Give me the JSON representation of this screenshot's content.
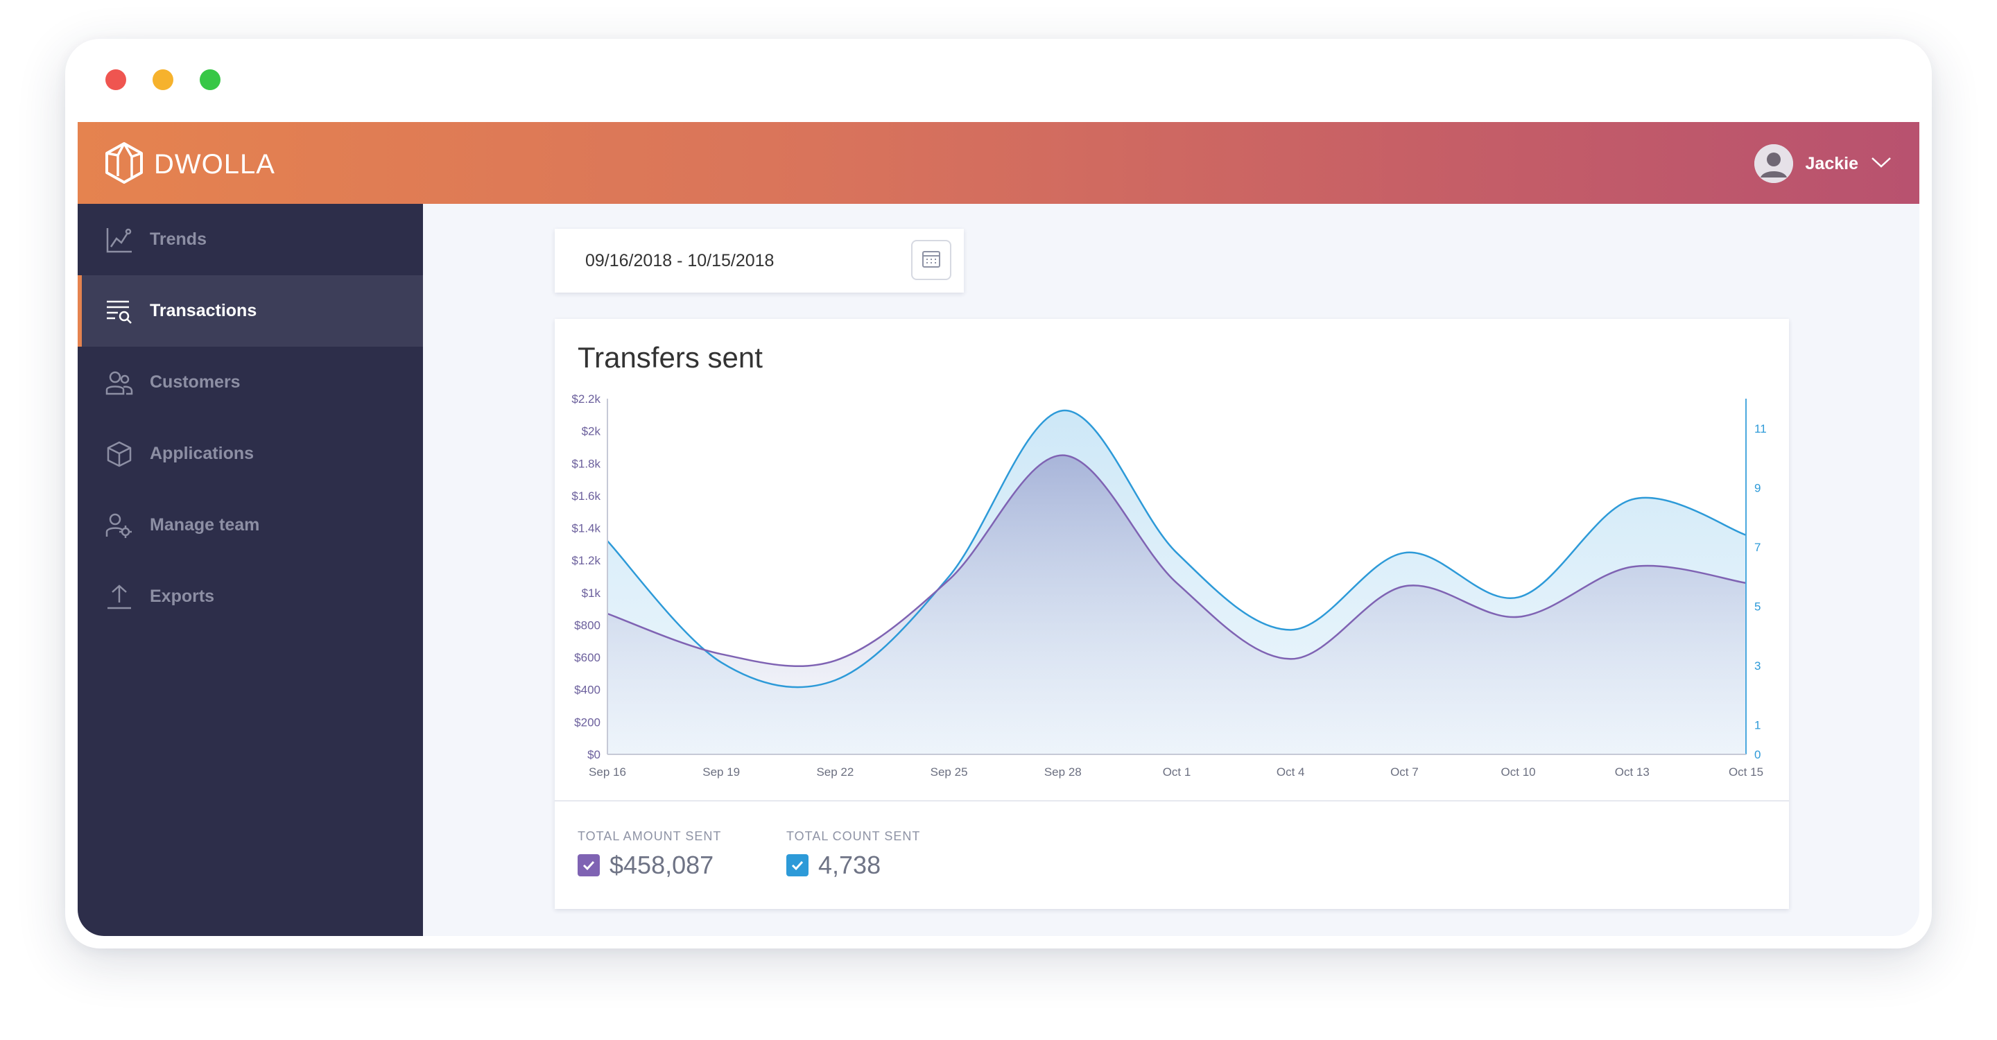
{
  "window": {
    "controls": [
      {
        "name": "close",
        "color": "#ef5550"
      },
      {
        "name": "minimize",
        "color": "#f6b22d"
      },
      {
        "name": "maximize",
        "color": "#37c746"
      }
    ]
  },
  "header": {
    "brand": "DWOLLA",
    "user_name": "Jackie"
  },
  "sidebar": {
    "items": [
      {
        "label": "Trends",
        "icon": "trends-icon",
        "active": false
      },
      {
        "label": "Transactions",
        "icon": "transactions-icon",
        "active": true
      },
      {
        "label": "Customers",
        "icon": "customers-icon",
        "active": false
      },
      {
        "label": "Applications",
        "icon": "applications-icon",
        "active": false
      },
      {
        "label": "Manage team",
        "icon": "manage-team-icon",
        "active": false
      },
      {
        "label": "Exports",
        "icon": "exports-icon",
        "active": false
      }
    ]
  },
  "date_range": {
    "value": "09/16/2018 - 10/15/2018",
    "icon": "calendar-icon"
  },
  "chart_card": {
    "title": "Transfers sent",
    "stats": [
      {
        "label": "TOTAL AMOUNT SENT",
        "value": "$458,087",
        "color": "#7f63b3"
      },
      {
        "label": "TOTAL COUNT SENT",
        "value": "4,738",
        "color": "#2d9ad8"
      }
    ]
  },
  "chart_data": {
    "type": "area",
    "title": "Transfers sent",
    "x_ticks": [
      "Sep 16",
      "Sep 19",
      "Sep 22",
      "Sep 25",
      "Sep 28",
      "Oct 1",
      "Oct 4",
      "Oct 7",
      "Oct 10",
      "Oct 13",
      "Oct 15"
    ],
    "y_left_ticks": [
      "$0",
      "$200",
      "$400",
      "$600",
      "$800",
      "$1k",
      "$1.2k",
      "$1.4k",
      "$1.6k",
      "$1.8k",
      "$2k",
      "$2.2k"
    ],
    "y_left_range": [
      0,
      2200
    ],
    "y_right_ticks": [
      "0",
      "1",
      "3",
      "5",
      "7",
      "9",
      "11"
    ],
    "y_right_range": [
      0,
      12
    ],
    "grid": false,
    "series": [
      {
        "name": "TOTAL AMOUNT SENT",
        "axis": "left",
        "color": "#7f63b3",
        "x": [
          "Sep 16",
          "Sep 19",
          "Sep 22",
          "Sep 25",
          "Sep 28",
          "Oct 1",
          "Oct 4",
          "Oct 7",
          "Oct 10",
          "Oct 13",
          "Oct 15"
        ],
        "values": [
          870,
          620,
          580,
          1080,
          1850,
          1060,
          590,
          1040,
          850,
          1160,
          1060
        ]
      },
      {
        "name": "TOTAL COUNT SENT",
        "axis": "right",
        "color": "#2d9ad8",
        "x": [
          "Sep 16",
          "Sep 19",
          "Sep 22",
          "Sep 25",
          "Sep 28",
          "Oct 1",
          "Oct 4",
          "Oct 7",
          "Oct 10",
          "Oct 13",
          "Oct 15"
        ],
        "values": [
          7.2,
          3.1,
          2.5,
          6.0,
          11.6,
          6.8,
          4.2,
          6.8,
          5.3,
          8.6,
          7.4
        ]
      }
    ]
  }
}
